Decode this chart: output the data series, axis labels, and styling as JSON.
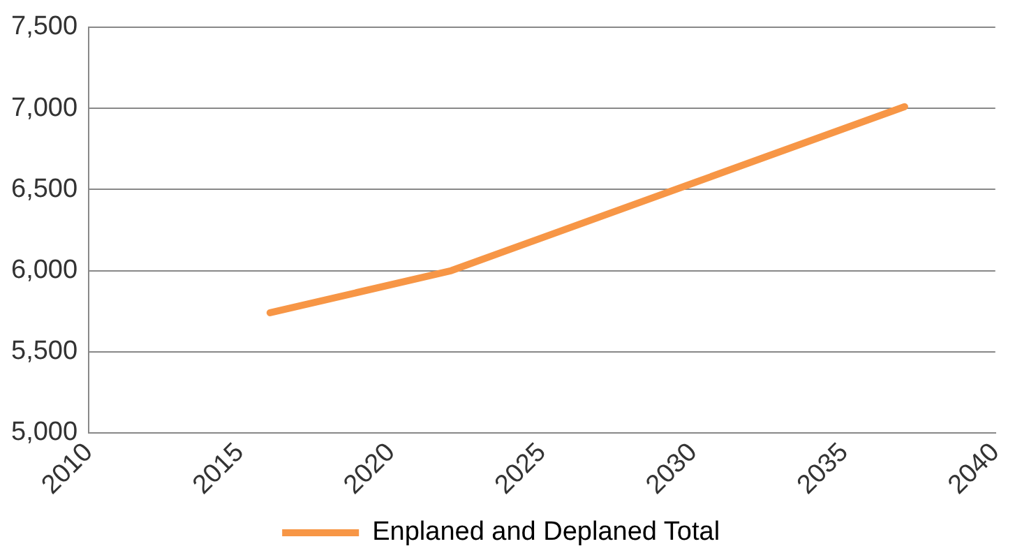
{
  "chart_data": {
    "type": "line",
    "x": [
      2016,
      2022,
      2037
    ],
    "series": [
      {
        "name": "Enplaned and Deplaned Total",
        "color": "#f79646",
        "values": [
          5740,
          6000,
          7010
        ]
      }
    ],
    "xlim": [
      2010,
      2040
    ],
    "xticks": [
      2010,
      2015,
      2020,
      2025,
      2030,
      2035,
      2040
    ],
    "ylim": [
      5000,
      7500
    ],
    "yticks": [
      {
        "value": 5000,
        "label": "5,000"
      },
      {
        "value": 5500,
        "label": "5,500"
      },
      {
        "value": 6000,
        "label": "6,000"
      },
      {
        "value": 6500,
        "label": "6,500"
      },
      {
        "value": 7000,
        "label": "7,000"
      },
      {
        "value": 7500,
        "label": "7,500"
      }
    ],
    "grid": "y",
    "legend": "bottom",
    "marker": "none",
    "line_style": "solid"
  }
}
